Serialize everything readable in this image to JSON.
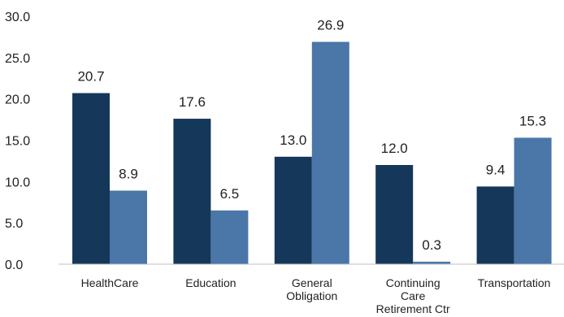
{
  "chart_data": {
    "type": "bar",
    "title": "",
    "xlabel": "",
    "ylabel": "",
    "ylim": [
      0,
      30
    ],
    "y_ticks": [
      "0.0",
      "5.0",
      "10.0",
      "15.0",
      "20.0",
      "25.0",
      "30.0"
    ],
    "grid": false,
    "legend": "none",
    "categories": [
      [
        "HealthCare"
      ],
      [
        "Education"
      ],
      [
        "General",
        "Obligation"
      ],
      [
        "Continuing",
        "Care",
        "Retirement Ctr"
      ],
      [
        "Transportation"
      ]
    ],
    "series": [
      {
        "values": [
          20.7,
          17.6,
          13.0,
          12.0,
          9.4
        ],
        "labels": [
          "20.7",
          "17.6",
          "13.0",
          "12.0",
          "9.4"
        ],
        "color": "#14375a"
      },
      {
        "values": [
          8.9,
          6.5,
          26.9,
          0.3,
          15.3
        ],
        "labels": [
          "8.9",
          "6.5",
          "26.9",
          "0.3",
          "15.3"
        ],
        "color": "#4a76a8"
      }
    ]
  }
}
